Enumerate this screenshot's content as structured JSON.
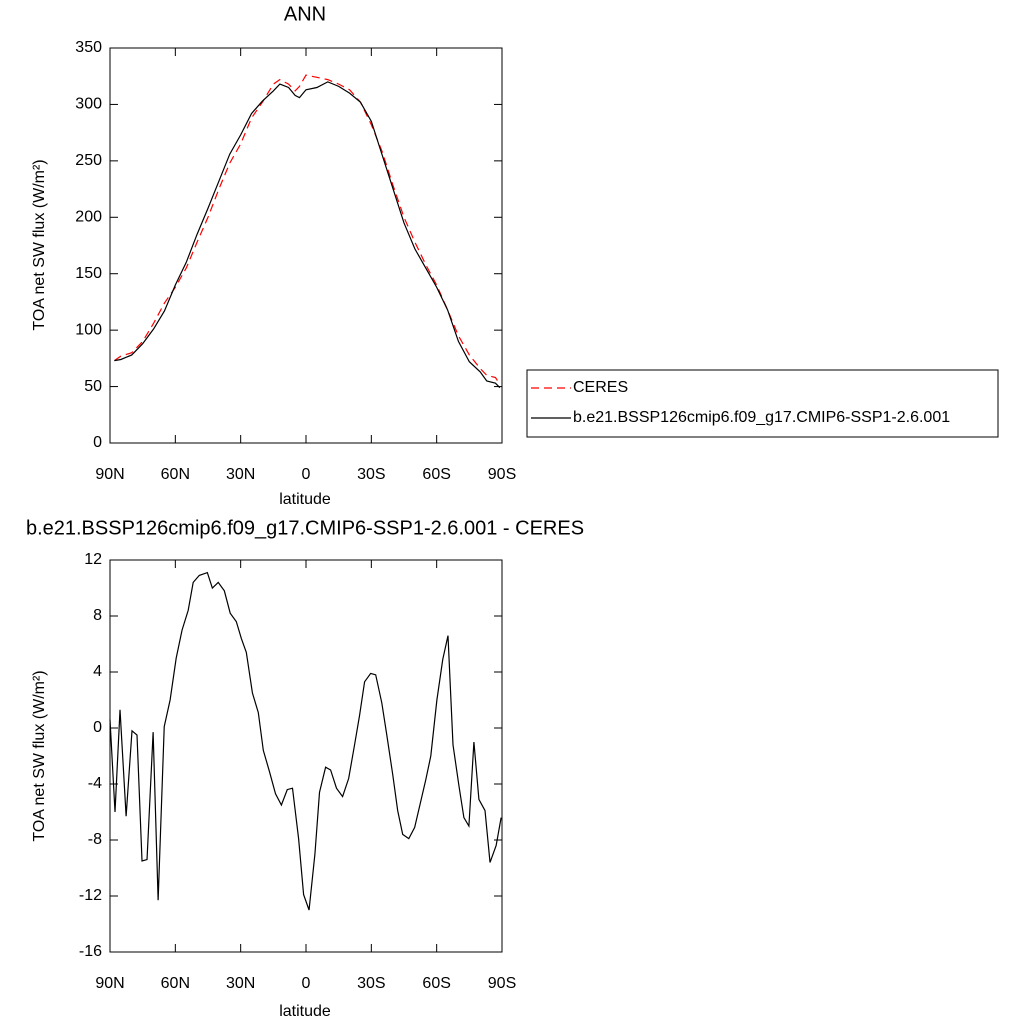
{
  "chart_data": [
    {
      "type": "line",
      "title": "ANN",
      "xlabel": "latitude",
      "ylabel": "TOA net SW flux (W/m²)",
      "xlim": [
        90,
        -90
      ],
      "xticks": [
        {
          "value": 90,
          "label": "90N"
        },
        {
          "value": 60,
          "label": "60N"
        },
        {
          "value": 30,
          "label": "30N"
        },
        0,
        {
          "value": -30,
          "label": "30S"
        },
        {
          "value": -60,
          "label": "60S"
        },
        {
          "value": -90,
          "label": "90S"
        }
      ],
      "ylim": [
        0,
        350
      ],
      "yticks": [
        0,
        50,
        100,
        150,
        200,
        250,
        300,
        350
      ],
      "legend": "right",
      "x": [
        88,
        85,
        80,
        75,
        70,
        65,
        60,
        55,
        50,
        45,
        40,
        35,
        30,
        25,
        20,
        15,
        12,
        8,
        5,
        3,
        0,
        -5,
        -10,
        -15,
        -20,
        -25,
        -30,
        -35,
        -40,
        -45,
        -50,
        -55,
        -60,
        -65,
        -70,
        -75,
        -80,
        -83,
        -87,
        -89
      ],
      "series": [
        {
          "name": "CERES",
          "color": "#ff0000",
          "dash": true,
          "values": [
            73,
            77,
            80,
            90,
            106,
            124,
            138,
            155,
            178,
            200,
            225,
            248,
            265,
            288,
            302,
            318,
            322,
            318,
            312,
            316,
            326,
            324,
            322,
            318,
            313,
            302,
            282,
            258,
            228,
            200,
            178,
            158,
            140,
            118,
            95,
            78,
            66,
            60,
            58,
            52
          ]
        },
        {
          "name": "b.e21.BSSP126cmip6.f09_g17.CMIP6-SSP1-2.6.001",
          "color": "#000000",
          "dash": false,
          "values": [
            73,
            74,
            78,
            88,
            101,
            117,
            140,
            160,
            185,
            208,
            232,
            256,
            273,
            292,
            303,
            312,
            318,
            315,
            308,
            306,
            313,
            315,
            320,
            316,
            310,
            302,
            285,
            255,
            225,
            195,
            172,
            155,
            138,
            118,
            90,
            72,
            63,
            55,
            53,
            49
          ]
        }
      ]
    },
    {
      "type": "line",
      "title": "b.e21.BSSP126cmip6.f09_g17.CMIP6-SSP1-2.6.001 - CERES",
      "xlabel": "latitude",
      "ylabel": "TOA net SW flux (W/m²)",
      "xlim": [
        90,
        -90
      ],
      "xticks": [
        {
          "value": 90,
          "label": "90N"
        },
        {
          "value": 60,
          "label": "60N"
        },
        {
          "value": 30,
          "label": "30N"
        },
        0,
        {
          "value": -30,
          "label": "30S"
        },
        {
          "value": -60,
          "label": "60S"
        },
        {
          "value": -90,
          "label": "90S"
        }
      ],
      "ylim": [
        -16,
        12
      ],
      "yticks": [
        -16,
        -12,
        -8,
        -4,
        0,
        4,
        8,
        12
      ],
      "x": [
        90,
        87.7,
        85.4,
        82.6,
        79.9,
        77.6,
        75.3,
        73,
        70.2,
        67.9,
        65.1,
        62.4,
        59.6,
        56.9,
        54.1,
        51.8,
        49,
        45.3,
        43,
        40.3,
        37.5,
        34.8,
        32,
        29.7,
        27.4,
        24.6,
        21.9,
        19.6,
        16.8,
        14,
        11.3,
        8.6,
        6.2,
        3.4,
        1.1,
        -1.4,
        -4.1,
        -6.2,
        -9,
        -11.3,
        -14,
        -16.8,
        -19.6,
        -22.3,
        -24.6,
        -26.9,
        -29.7,
        -32,
        -34.8,
        -37.1,
        -39.8,
        -42.1,
        -44.4,
        -47.2,
        -49.9,
        -52.3,
        -55,
        -57.3,
        -60.1,
        -62.8,
        -65.2,
        -67.5,
        -70.2,
        -72.5,
        -74.8,
        -77.1,
        -79.4,
        -82.2,
        -84.5,
        -87.3,
        -89.6
      ],
      "series": [
        {
          "name": null,
          "color": "#000000",
          "values": [
            0.6,
            -6,
            1.3,
            -6.3,
            -0.2,
            -0.5,
            -9.5,
            -9.4,
            -0.3,
            -12.3,
            0.1,
            2,
            5,
            7,
            8.4,
            10.4,
            10.9,
            11.1,
            10,
            10.4,
            9.8,
            8.2,
            7.6,
            6.4,
            5.4,
            2.5,
            1.1,
            -1.6,
            -3.1,
            -4.7,
            -5.5,
            -4.4,
            -4.3,
            -7.9,
            -11.9,
            -13,
            -9,
            -4.6,
            -2.8,
            -3,
            -4.3,
            -4.9,
            -3.6,
            -1.2,
            0.9,
            3.3,
            3.9,
            3.8,
            1.8,
            -0.5,
            -3.3,
            -5.9,
            -7.6,
            -7.9,
            -7.1,
            -5.5,
            -3.7,
            -2,
            2,
            4.9,
            6.6,
            -1.2,
            -4.1,
            -6.4,
            -7,
            -1,
            -5.1,
            -5.9,
            -9.6,
            -8.4,
            -6.4
          ]
        }
      ]
    }
  ]
}
